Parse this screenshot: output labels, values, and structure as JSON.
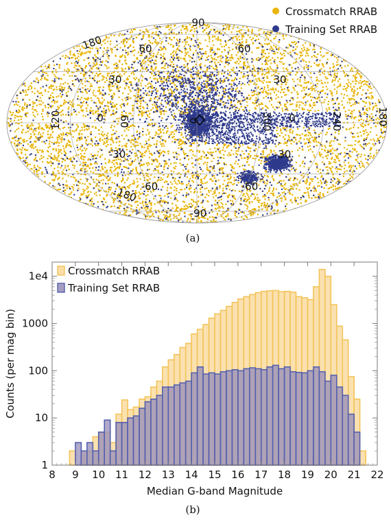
{
  "chart_data": [
    {
      "type": "scatter",
      "projection": "Aitoff/Mollweide all-sky (Galactic coordinates)",
      "legend": {
        "placement": "top-right",
        "entries": [
          {
            "label": "Crossmatch RRAB",
            "color": "#E8B50B"
          },
          {
            "label": "Training Set RRAB",
            "color": "#2E3A8C"
          }
        ]
      },
      "longitude_labels": [
        "180",
        "120",
        "60",
        "0",
        "300",
        "240",
        "180"
      ],
      "latitude_labels_left": [
        "90",
        "60",
        "30",
        "0",
        "-30",
        "-60",
        "-90"
      ],
      "latitude_labels_right": [
        "60",
        "30",
        "0",
        "-30",
        "-60"
      ],
      "grid": true
    },
    {
      "type": "bar",
      "xlabel": "Median G-band Magnitude",
      "ylabel": "Counts (per mag bin)",
      "xlim": [
        8,
        22
      ],
      "ylim": [
        1,
        20000
      ],
      "yscale": "log",
      "xticks": [
        "8",
        "9",
        "10",
        "11",
        "12",
        "13",
        "14",
        "15",
        "16",
        "17",
        "18",
        "19",
        "20",
        "21",
        "22"
      ],
      "yticks": [
        "1",
        "10",
        "100",
        "1000",
        "1e4"
      ],
      "bin_width": 0.25,
      "legend_placement": "top-left",
      "series": [
        {
          "name": "Crossmatch RRAB",
          "color": "#F3C45A",
          "bins": [
            [
              8.75,
              2
            ],
            [
              9.0,
              1
            ],
            [
              9.25,
              2
            ],
            [
              9.5,
              2
            ],
            [
              9.75,
              4
            ],
            [
              10.0,
              5
            ],
            [
              10.25,
              5
            ],
            [
              10.5,
              3
            ],
            [
              10.75,
              12
            ],
            [
              11.0,
              24
            ],
            [
              11.25,
              15
            ],
            [
              11.5,
              17
            ],
            [
              11.75,
              25
            ],
            [
              12.0,
              28
            ],
            [
              12.25,
              45
            ],
            [
              12.5,
              60
            ],
            [
              12.75,
              120
            ],
            [
              13.0,
              170
            ],
            [
              13.25,
              220
            ],
            [
              13.5,
              310
            ],
            [
              13.75,
              380
            ],
            [
              14.0,
              600
            ],
            [
              14.25,
              750
            ],
            [
              14.5,
              950
            ],
            [
              14.75,
              1300
            ],
            [
              15.0,
              1600
            ],
            [
              15.25,
              1900
            ],
            [
              15.5,
              2300
            ],
            [
              15.75,
              2800
            ],
            [
              16.0,
              3300
            ],
            [
              16.25,
              3700
            ],
            [
              16.5,
              4100
            ],
            [
              16.75,
              4500
            ],
            [
              17.0,
              4800
            ],
            [
              17.25,
              4900
            ],
            [
              17.5,
              5000
            ],
            [
              17.75,
              4700
            ],
            [
              18.0,
              4800
            ],
            [
              18.25,
              4600
            ],
            [
              18.5,
              3700
            ],
            [
              18.75,
              3500
            ],
            [
              19.0,
              3200
            ],
            [
              19.25,
              6000
            ],
            [
              19.5,
              14000
            ],
            [
              19.75,
              10000
            ],
            [
              20.0,
              2500
            ],
            [
              20.25,
              880
            ],
            [
              20.5,
              450
            ],
            [
              20.75,
              75
            ],
            [
              21.0,
              25
            ],
            [
              21.25,
              2
            ]
          ]
        },
        {
          "name": "Training Set RRAB",
          "color": "#5360AE",
          "bins": [
            [
              9.0,
              3
            ],
            [
              9.25,
              2
            ],
            [
              9.5,
              3
            ],
            [
              9.75,
              2
            ],
            [
              10.0,
              5
            ],
            [
              10.25,
              9
            ],
            [
              10.5,
              2
            ],
            [
              10.75,
              8
            ],
            [
              11.0,
              8
            ],
            [
              11.25,
              10
            ],
            [
              11.5,
              11
            ],
            [
              11.75,
              16
            ],
            [
              12.0,
              22
            ],
            [
              12.25,
              25
            ],
            [
              12.5,
              30
            ],
            [
              12.75,
              45
            ],
            [
              13.0,
              45
            ],
            [
              13.25,
              50
            ],
            [
              13.5,
              55
            ],
            [
              13.75,
              60
            ],
            [
              14.0,
              90
            ],
            [
              14.25,
              120
            ],
            [
              14.5,
              85
            ],
            [
              14.75,
              90
            ],
            [
              15.0,
              85
            ],
            [
              15.25,
              95
            ],
            [
              15.5,
              100
            ],
            [
              15.75,
              105
            ],
            [
              16.0,
              100
            ],
            [
              16.25,
              110
            ],
            [
              16.5,
              115
            ],
            [
              16.75,
              110
            ],
            [
              17.0,
              105
            ],
            [
              17.25,
              120
            ],
            [
              17.5,
              130
            ],
            [
              17.75,
              110
            ],
            [
              18.0,
              120
            ],
            [
              18.25,
              95
            ],
            [
              18.5,
              92
            ],
            [
              18.75,
              90
            ],
            [
              19.0,
              100
            ],
            [
              19.25,
              120
            ],
            [
              19.5,
              95
            ],
            [
              19.75,
              60
            ],
            [
              20.0,
              80
            ],
            [
              20.25,
              45
            ],
            [
              20.5,
              30
            ],
            [
              20.75,
              12
            ],
            [
              21.0,
              5
            ]
          ]
        }
      ]
    }
  ],
  "captions": {
    "a": "(a)",
    "b": "(b)"
  }
}
